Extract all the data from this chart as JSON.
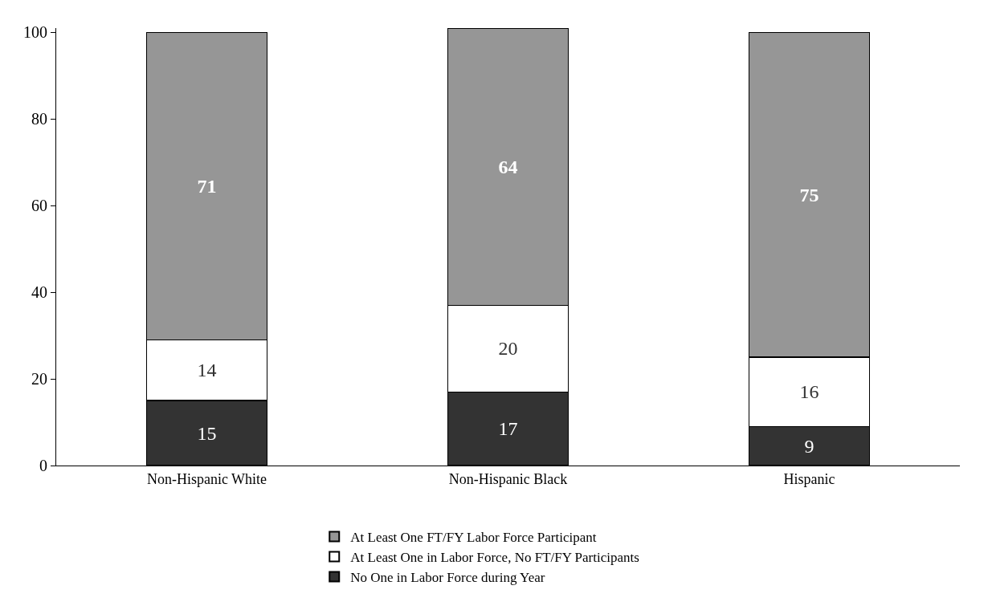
{
  "chart_data": {
    "type": "bar",
    "stacked": true,
    "data_labels": true,
    "categories": [
      "Non-Hispanic White",
      "Non-Hispanic Black",
      "Hispanic"
    ],
    "series": [
      {
        "name": "No One in Labor Force during Year",
        "color": "#333333",
        "values": [
          15,
          17,
          9
        ]
      },
      {
        "name": "At Least One in Labor Force, No FT/FY Participants",
        "color": "#ffffff",
        "values": [
          14,
          20,
          16
        ]
      },
      {
        "name": "At Least One FT/FY Labor Force Participant",
        "color": "#969696",
        "values": [
          71,
          64,
          75
        ]
      }
    ],
    "ylim": [
      0,
      101
    ],
    "yticks": [
      0,
      20,
      40,
      60,
      80,
      100
    ],
    "legend": "bottom"
  }
}
